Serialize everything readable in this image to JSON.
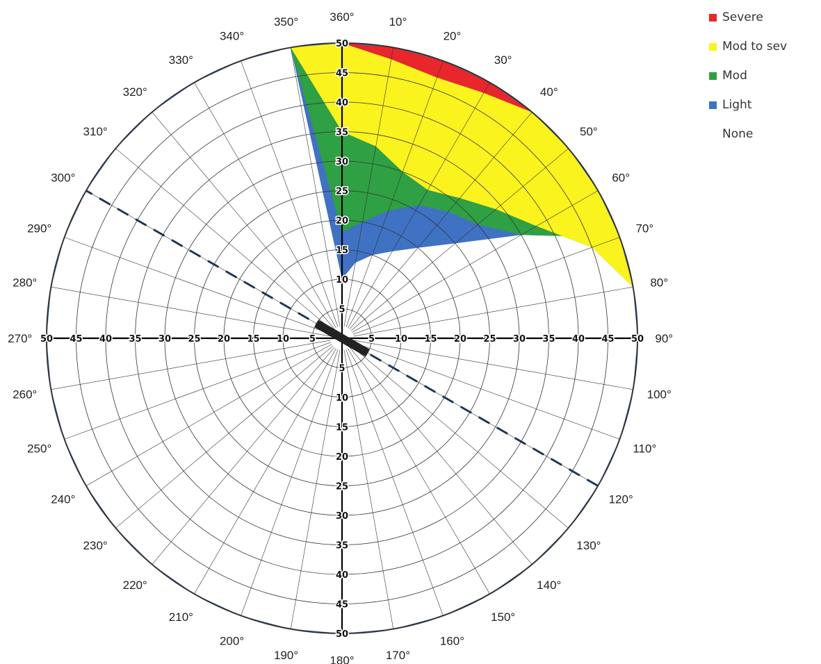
{
  "chart_data": {
    "type": "polar-area",
    "r_max": 50,
    "radial_ticks": [
      5,
      10,
      15,
      20,
      25,
      30,
      35,
      40,
      45,
      50
    ],
    "angle_ticks": [
      10,
      20,
      30,
      40,
      50,
      60,
      70,
      80,
      90,
      100,
      110,
      120,
      130,
      140,
      150,
      160,
      170,
      180,
      190,
      200,
      210,
      220,
      230,
      240,
      250,
      260,
      270,
      280,
      290,
      300,
      310,
      320,
      330,
      340,
      350,
      360
    ],
    "angle_labels": [
      "10°",
      "20°",
      "30°",
      "40°",
      "50°",
      "60°",
      "70°",
      "80°",
      "90°",
      "100°",
      "110°",
      "120°",
      "130°",
      "140°",
      "150°",
      "160°",
      "170°",
      "180°",
      "190°",
      "200°",
      "210°",
      "220°",
      "230°",
      "240°",
      "250°",
      "260°",
      "270°",
      "280°",
      "290°",
      "300°",
      "310°",
      "320°",
      "330°",
      "340°",
      "350°",
      "360°"
    ],
    "radial_labels": [
      "5",
      "10",
      "15",
      "20",
      "25",
      "30",
      "35",
      "40",
      "45",
      "50"
    ],
    "dashed_axis_angles": [
      120,
      300
    ],
    "inner_hole_radius": 10,
    "legend": [
      {
        "name": "Severe",
        "color": "#e8262b"
      },
      {
        "name": "Mod to sev",
        "color": "#fbf31d"
      },
      {
        "name": "Mod",
        "color": "#2fa043"
      },
      {
        "name": "Light",
        "color": "#3f72c3"
      },
      {
        "name": "None",
        "color": "#ffffff"
      }
    ],
    "zone_angles": [
      0,
      10,
      20,
      30,
      40,
      50,
      60,
      70,
      80,
      90,
      100,
      110,
      120,
      130,
      140,
      150,
      160,
      170,
      180,
      190,
      200,
      210,
      220,
      230,
      240,
      250,
      260,
      270,
      280,
      290,
      300,
      310,
      320,
      330,
      340,
      350
    ],
    "zone_boundaries": {
      "none_to_light": [
        10,
        13,
        15,
        17,
        20,
        25,
        35,
        50,
        50,
        50,
        50,
        50,
        50,
        50,
        50,
        50,
        50,
        50,
        50,
        50,
        50,
        50,
        50,
        50,
        50,
        50,
        50,
        50,
        50,
        50,
        50,
        50,
        50,
        50,
        50,
        50
      ],
      "light_to_mod": [
        18,
        20,
        23,
        26,
        28,
        30,
        35,
        50,
        50,
        50,
        50,
        50,
        50,
        50,
        50,
        50,
        50,
        50,
        50,
        50,
        50,
        50,
        50,
        50,
        50,
        50,
        50,
        50,
        50,
        50,
        50,
        50,
        50,
        50,
        50,
        50
      ],
      "mod_to_modsev": [
        35,
        33,
        30,
        29,
        31,
        34,
        38,
        45,
        50,
        50,
        50,
        50,
        50,
        50,
        50,
        50,
        50,
        50,
        50,
        50,
        50,
        50,
        50,
        50,
        50,
        50,
        50,
        50,
        50,
        50,
        50,
        50,
        50,
        50,
        50,
        50
      ],
      "modsev_to_severe": [
        50,
        48,
        47,
        48,
        50,
        50,
        50,
        50,
        50,
        50,
        50,
        50,
        50,
        50,
        50,
        50,
        50,
        50,
        50,
        50,
        50,
        50,
        50,
        50,
        50,
        50,
        50,
        50,
        50,
        50,
        50,
        50,
        50,
        50,
        50,
        50
      ]
    }
  }
}
